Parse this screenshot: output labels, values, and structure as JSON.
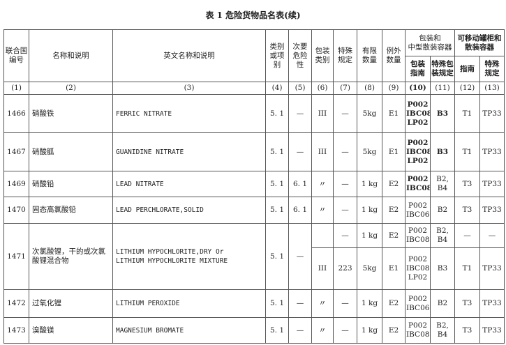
{
  "title": "表 1 危险货物品名表(续)",
  "headers": {
    "un": "联合国\n编号",
    "name": "名称和说明",
    "en": "英文名称和说明",
    "cls": "类别\n或项别",
    "sub": "次要\n危险性",
    "pg": "包装\n类别",
    "sp": "特殊\n规定",
    "lq": "有限\n数量",
    "eq": "例外\n数量",
    "pack_group": "包装和\n中型散装容器",
    "pack_inst": "包装\n指南",
    "pack_sp": "特殊包\n装规定",
    "tank_group": "可移动罐柜和\n散装容器",
    "tank_inst": "指南",
    "tank_sp": "特殊\n规定",
    "nums": [
      "(1)",
      "(2)",
      "(3)",
      "(4)",
      "(5)",
      "(6)",
      "(7)",
      "(8)",
      "(9)",
      "(10)",
      "(11)",
      "(12)",
      "(13)"
    ]
  },
  "rows": [
    {
      "cells": [
        "1466",
        "硝酸铁",
        "FERRIC NITRATE",
        "5. 1",
        "—",
        "III",
        "—",
        "5kg",
        "E1",
        "P002\nIBC08\nLP02",
        "B3",
        "T1",
        "TP33"
      ]
    },
    {
      "cells": [
        "1467",
        "硝酸胍",
        "GUANIDINE NITRATE",
        "5. 1",
        "—",
        "III",
        "—",
        "5kg",
        "E1",
        "P002\nIBC08\nLP02",
        "B3",
        "T1",
        "TP33"
      ]
    },
    {
      "cells": [
        "1469",
        "硝酸铅",
        "LEAD NITRATE",
        "5. 1",
        "6. 1",
        "〃",
        "—",
        "1  kg",
        "E2",
        "P002\nIBC08",
        "B2, B4",
        "T3",
        "TP33"
      ]
    },
    {
      "cells": [
        "1470",
        "固态高氯酸铅",
        "LEAD PERCHLORATE,SOLID",
        "5. 1",
        "6. 1",
        "〃",
        "—",
        "1  kg",
        "E2",
        "P002\nIBC06",
        "B2",
        "T3",
        "TP33"
      ]
    },
    {
      "cells": [
        "1471",
        "次氯酸锂，干的或次氯酸锂混合物",
        "LITHIUM HYPOCHLORITE,DRY Or\nLITHIUM HYPOCHLORITE MIXTURE",
        "5. 1",
        "—"
      ],
      "sub": [
        [
          "",
          "—",
          "1  kg",
          "E2",
          "P002\nIBC08",
          "B2, B4",
          "—",
          "—"
        ],
        [
          "III",
          "223",
          "5kg",
          "E1",
          "P002\nIBC08\nLP02",
          "B3",
          "T1",
          "TP33"
        ]
      ]
    },
    {
      "cells": [
        "1472",
        "过氧化锂",
        "LITHIUM PEROXIDE",
        "5. 1",
        "—",
        "〃",
        "—",
        "1  kg",
        "E2",
        "P002\nIBC06",
        "B2",
        "T3",
        "TP33"
      ]
    },
    {
      "cells": [
        "1473",
        "溴酸镁",
        "MAGNESIUM    BROMATE",
        "5. 1",
        "—",
        "〃",
        "—",
        "1  kg",
        "E2",
        "P002\nIBC08",
        "B2, B4",
        "T3",
        "TP33"
      ]
    }
  ]
}
